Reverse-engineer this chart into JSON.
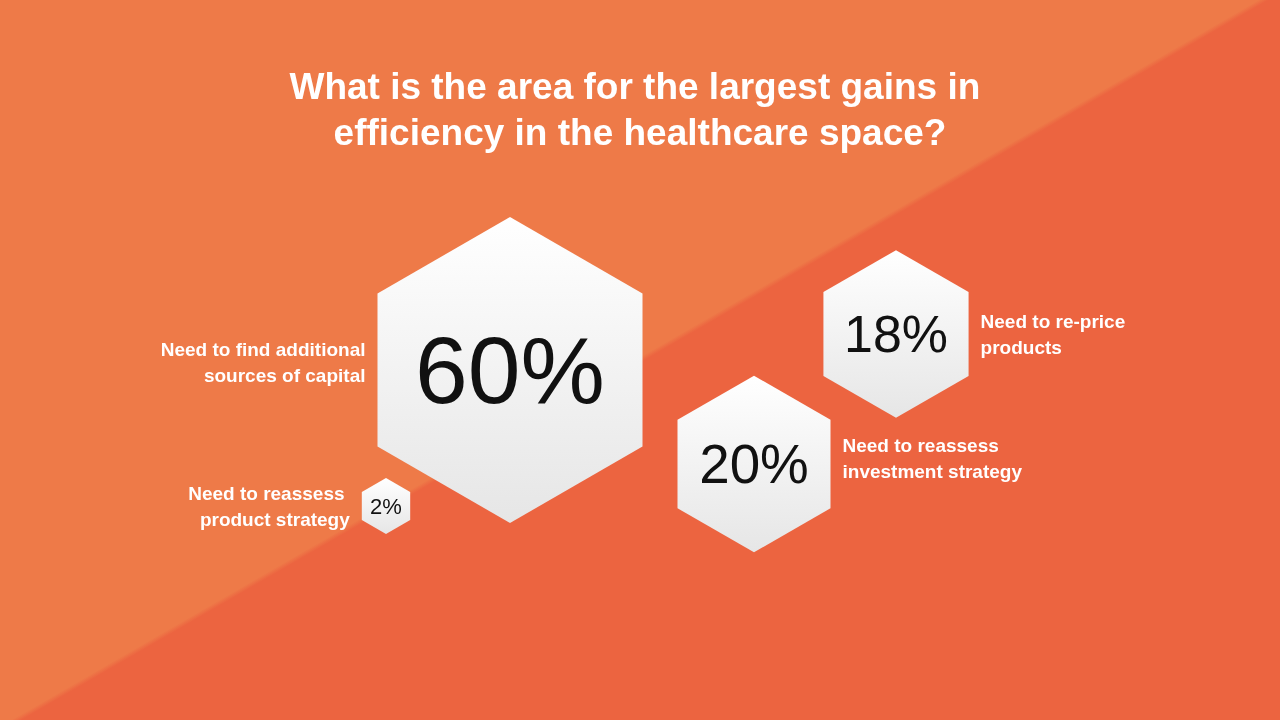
{
  "chart_data": {
    "type": "other",
    "title": "What is the area for the largest gains in efficiency in the healthcare space?",
    "categories": [
      "Need to find additional sources of capital",
      "Need to reassess investment strategy",
      "Need to re-price products",
      "Need to reassess product strategy"
    ],
    "values": [
      60,
      20,
      18,
      2
    ],
    "value_labels": [
      "60%",
      "20%",
      "18%",
      "2%"
    ]
  }
}
